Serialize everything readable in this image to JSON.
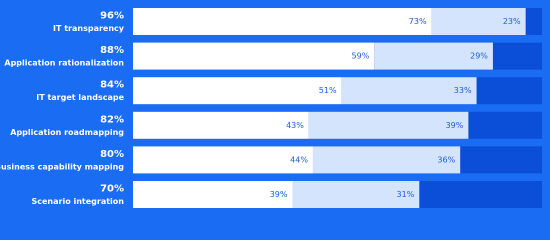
{
  "chart_data": {
    "type": "stacked-bar-horizontal",
    "categories": [
      "IT transparency",
      "Application rationalization",
      "IT target landscape",
      "Application roadmapping",
      "Business capability mapping",
      "Scenario integration"
    ],
    "totals": [
      96,
      88,
      84,
      82,
      80,
      70
    ],
    "total_labels": [
      "96%",
      "88%",
      "84%",
      "82%",
      "80%",
      "70%"
    ],
    "series": [
      {
        "color": "#ffffff",
        "values": [
          73,
          59,
          51,
          43,
          44,
          39
        ],
        "value_labels": [
          "73%",
          "59%",
          "51%",
          "43%",
          "44%",
          "39%"
        ]
      },
      {
        "color": "#d3e4fc",
        "values": [
          23,
          29,
          33,
          39,
          36,
          31
        ],
        "value_labels": [
          "23%",
          "29%",
          "33%",
          "39%",
          "36%",
          "31%"
        ]
      }
    ],
    "xlim": [
      0,
      100
    ]
  }
}
